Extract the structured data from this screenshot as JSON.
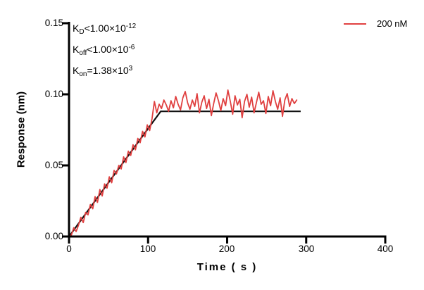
{
  "figure": {
    "background": "#ffffff"
  },
  "chart_data": {
    "type": "line",
    "title": "",
    "xlabel": "Time ( s )",
    "ylabel": "Response (nm)",
    "xlim": [
      0,
      400
    ],
    "ylim": [
      0,
      0.15
    ],
    "x_tick_labels": [
      "0",
      "100",
      "200",
      "300",
      "400"
    ],
    "y_tick_labels": [
      "0.00",
      "0.05",
      "0.10",
      "0.15"
    ],
    "x_tick_values": [
      0,
      100,
      200,
      300,
      400
    ],
    "y_tick_values": [
      0,
      0.05,
      0.1,
      0.15
    ],
    "grid": false,
    "legend": {
      "position": "top-right",
      "entries": [
        {
          "label": "200 nM",
          "color": "#e04040"
        }
      ]
    },
    "annotations": {
      "rows": [
        {
          "base": "K",
          "sub": "D",
          "op": "<",
          "mantissa": "1.00×10",
          "exp": "-12"
        },
        {
          "base": "K",
          "sub": "off",
          "op": "<",
          "mantissa": "1.00×10",
          "exp": "-6"
        },
        {
          "base": "K",
          "sub": "on",
          "op": "=",
          "mantissa": "1.38×10",
          "exp": "3"
        }
      ]
    },
    "series": [
      {
        "name": "200 nM response trace",
        "color": "#e04040",
        "style": "noisy-line",
        "t0": 0,
        "dt": 3,
        "values": [
          0.0005,
          0.001,
          0.0062,
          0.0035,
          0.008,
          0.0135,
          0.0098,
          0.017,
          0.0152,
          0.0225,
          0.0195,
          0.028,
          0.024,
          0.033,
          0.0285,
          0.037,
          0.034,
          0.042,
          0.0378,
          0.0465,
          0.044,
          0.05,
          0.0475,
          0.056,
          0.052,
          0.06,
          0.057,
          0.0645,
          0.061,
          0.069,
          0.066,
          0.074,
          0.07,
          0.0785,
          0.0745,
          0.083,
          0.095,
          0.087,
          0.093,
          0.09,
          0.096,
          0.0925,
          0.088,
          0.0955,
          0.0905,
          0.0985,
          0.093,
          0.089,
          0.0975,
          0.102,
          0.094,
          0.0895,
          0.096,
          0.0915,
          0.1005,
          0.087,
          0.0945,
          0.099,
          0.09,
          0.0965,
          0.085,
          0.0935,
          0.101,
          0.0955,
          0.0885,
          0.097,
          0.092,
          0.103,
          0.095,
          0.086,
          0.099,
          0.0925,
          0.0965,
          0.0835,
          0.095,
          0.1,
          0.091,
          0.098,
          0.087,
          0.094,
          0.1015,
          0.093,
          0.0955,
          0.0865,
          0.0985,
          0.092,
          0.1025,
          0.095,
          0.0895,
          0.0975,
          0.0845,
          0.096,
          0.1005,
          0.0915,
          0.097,
          0.0935,
          0.096
        ]
      },
      {
        "name": "kinetic fit line",
        "color": "#111111",
        "style": "fit-line",
        "points": [
          [
            0,
            0
          ],
          [
            116,
            0.088
          ],
          [
            293,
            0.088
          ]
        ]
      }
    ]
  }
}
